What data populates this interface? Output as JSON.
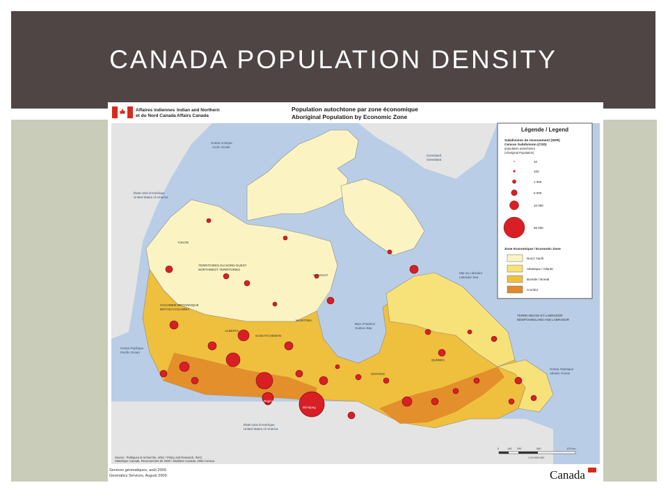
{
  "slide": {
    "title": "CANADA POPULATION DENSITY"
  },
  "map": {
    "header": {
      "fr_org_line1": "Affaires indiennes",
      "fr_org_line2": "et du Nord Canada",
      "en_org_line1": "Indian and Northern",
      "en_org_line2": "Affairs Canada",
      "title_fr": "Population autochtone par zone économique",
      "title_en": "Aboriginal Population by Economic Zone"
    },
    "legend": {
      "heading": "Légende / Legend",
      "csd_fr": "Subdivision de recensement (SDR)",
      "csd_en": "Census Subdivision (CSD)",
      "pop_fr": "(population autochtone)",
      "pop_en": "(Aboriginal Population)",
      "sizes": [
        "10",
        "100",
        "1 000",
        "5 000",
        "10 000",
        "55 000"
      ],
      "zone_heading": "Zone économique / Economic Zone",
      "zones": [
        {
          "label": "Nord / North",
          "color": "#fbf4c2"
        },
        {
          "label": "Atlantique / Atlantic",
          "color": "#f7e27a"
        },
        {
          "label": "Boréale / Boreal",
          "color": "#efc03d"
        },
        {
          "label": "Corridor",
          "color": "#e08a2a"
        }
      ]
    },
    "place_labels": {
      "arctic": "Océan Arctique",
      "arctic_en": "Arctic Ocean",
      "greenland": "Groenland",
      "greenland_en": "Greenland",
      "usa_nw_fr": "États-Unis d'Amérique",
      "usa_nw_en": "United States of America",
      "usa_s_fr": "États-Unis d'Amérique",
      "usa_s_en": "United States of America",
      "labrador_sea_fr": "Mer du Labrador",
      "labrador_sea_en": "Labrador Sea",
      "hudson_fr": "Baie d'Hudson",
      "hudson_en": "Hudson Bay",
      "pacific_fr": "Océan Pacifique",
      "pacific_en": "Pacific Ocean",
      "atlantic_fr": "Océan Atlantique",
      "atlantic_en": "Atlantic Ocean",
      "yukon": "YUKON",
      "nwt_fr": "TERRITOIRES DU NORD-OUEST",
      "nwt_en": "NORTHWEST TERRITORIES",
      "nunavut": "NUNAVUT",
      "bc_fr": "COLOMBIE-BRITANNIQUE",
      "bc_en": "BRITISH COLUMBIA",
      "alberta": "ALBERTA",
      "sask": "SASKATCHEWAN",
      "manitoba": "MANITOBA",
      "ontario": "ONTARIO",
      "quebec": "QUÉBEC",
      "nl_fr": "TERRE-NEUVE-ET-LABRADOR",
      "nl_en": "NEWFOUNDLAND AND LABRADOR",
      "winnipeg": "Winnipeg",
      "regina": "Regina"
    },
    "footer": {
      "source": "Source : Politiques et recherche, AINC / Policy and Research, INAC",
      "source2": "Statistique Canada, Recensement de 2006 / Statistics Canada, 2006 Census.",
      "services_fr": "Services géomatiques, août 2009.",
      "services_en": "Geomatics Services, August 2009.",
      "scale": "1:19 000 000",
      "scale_ticks": [
        "0",
        "145",
        "290",
        "580",
        "870 km"
      ],
      "wordmark": "Canada"
    },
    "colors": {
      "water": "#b9cde6",
      "land_foreign": "#e4e4e4",
      "dot": "#d91f26",
      "dot_edge": "#7a0a0a"
    }
  }
}
